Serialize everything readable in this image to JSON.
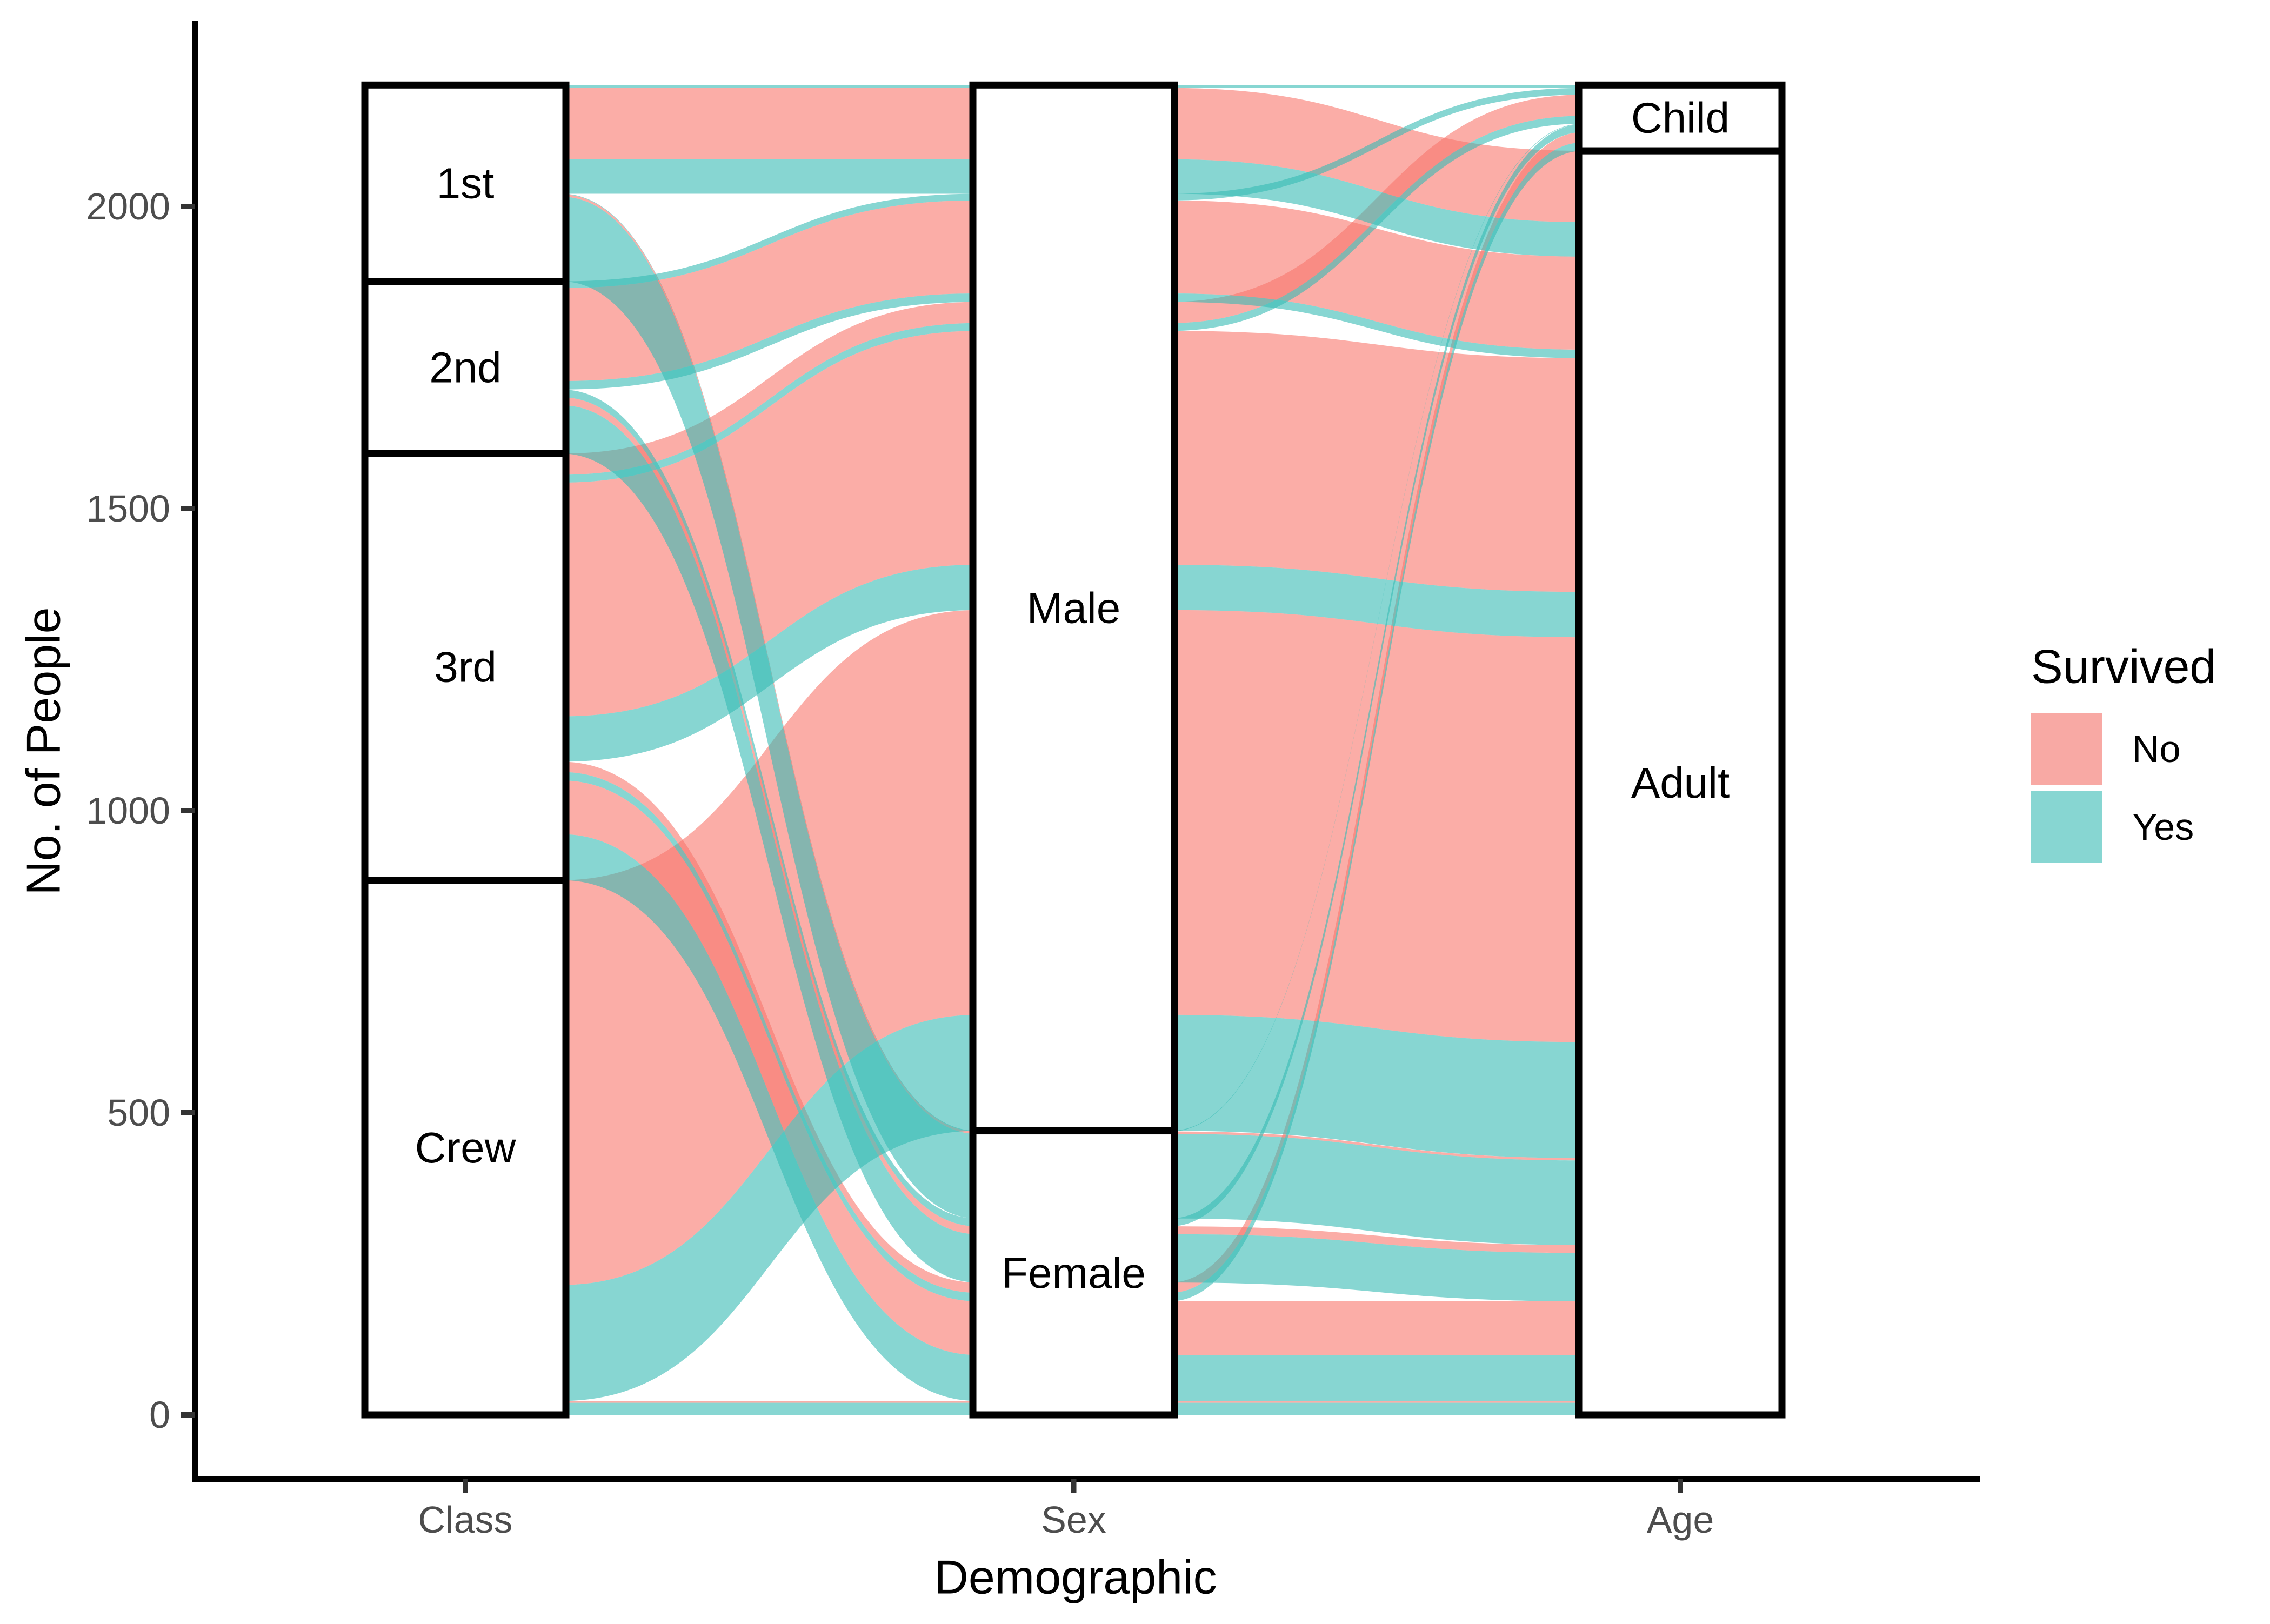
{
  "figure": {
    "background": "#FFFFFF",
    "y_axis": {
      "title": "No. of People",
      "tick_labels": [
        "0",
        "500",
        "1000",
        "1500",
        "2000"
      ],
      "tick_color": "#4D4D4D",
      "line_color": "#000000"
    },
    "x_axis": {
      "title": "Demographic",
      "tick_labels": [
        "Class",
        "Sex",
        "Age"
      ],
      "tick_color": "#4D4D4D",
      "line_color": "#000000"
    },
    "legend": {
      "title": "Survived",
      "entries": [
        {
          "label": "No",
          "swatch_color": "#F8A9A4"
        },
        {
          "label": "Yes",
          "swatch_color": "#87D6D2"
        }
      ]
    },
    "strata_labels": {
      "Class": [
        "1st",
        "2nd",
        "3rd",
        "Crew"
      ],
      "Sex": [
        "Male",
        "Female"
      ],
      "Age": [
        "Child",
        "Adult"
      ]
    }
  },
  "chart_data": {
    "type": "alluvial",
    "title": "",
    "xlabel": "Demographic",
    "ylabel": "No. of People",
    "axes": [
      "Class",
      "Sex",
      "Age"
    ],
    "strata": {
      "Class": [
        "1st",
        "2nd",
        "3rd",
        "Crew"
      ],
      "Sex": [
        "Male",
        "Female"
      ],
      "Age": [
        "Child",
        "Adult"
      ]
    },
    "stratum_totals": {
      "Class": {
        "1st": 325,
        "2nd": 285,
        "3rd": 706,
        "Crew": 885
      },
      "Sex": {
        "Male": 1731,
        "Female": 470
      },
      "Age": {
        "Child": 109,
        "Adult": 2092
      }
    },
    "fill_variable": "Survived",
    "fill_levels": [
      "No",
      "Yes"
    ],
    "fill_base_colors": {
      "No": "#F8766D",
      "Yes": "#37BBB4"
    },
    "fill_display_colors": {
      "No": "#F8A9A4",
      "Yes": "#87D6D2"
    },
    "flow_opacity": 0.6,
    "yticks": [
      0,
      500,
      1000,
      1500,
      2000
    ],
    "ylim": [
      0,
      2201
    ],
    "grid": false,
    "legend_position": "right",
    "lode_order_keys": {
      "Class": [
        "Sex",
        "Age",
        "Survived"
      ],
      "Sex": [
        "Class",
        "Age",
        "Survived"
      ],
      "Age": [
        "Sex",
        "Class",
        "Survived"
      ]
    },
    "alluvia": [
      {
        "Class": "1st",
        "Sex": "Male",
        "Age": "Adult",
        "Survived": "No",
        "Freq": 118
      },
      {
        "Class": "2nd",
        "Sex": "Male",
        "Age": "Adult",
        "Survived": "No",
        "Freq": 154
      },
      {
        "Class": "3rd",
        "Sex": "Male",
        "Age": "Child",
        "Survived": "No",
        "Freq": 35
      },
      {
        "Class": "3rd",
        "Sex": "Male",
        "Age": "Adult",
        "Survived": "No",
        "Freq": 387
      },
      {
        "Class": "Crew",
        "Sex": "Male",
        "Age": "Adult",
        "Survived": "No",
        "Freq": 670
      },
      {
        "Class": "1st",
        "Sex": "Female",
        "Age": "Adult",
        "Survived": "No",
        "Freq": 4
      },
      {
        "Class": "2nd",
        "Sex": "Female",
        "Age": "Adult",
        "Survived": "No",
        "Freq": 13
      },
      {
        "Class": "3rd",
        "Sex": "Female",
        "Age": "Child",
        "Survived": "No",
        "Freq": 17
      },
      {
        "Class": "3rd",
        "Sex": "Female",
        "Age": "Adult",
        "Survived": "No",
        "Freq": 89
      },
      {
        "Class": "Crew",
        "Sex": "Female",
        "Age": "Adult",
        "Survived": "No",
        "Freq": 3
      },
      {
        "Class": "1st",
        "Sex": "Male",
        "Age": "Child",
        "Survived": "Yes",
        "Freq": 5
      },
      {
        "Class": "2nd",
        "Sex": "Male",
        "Age": "Child",
        "Survived": "Yes",
        "Freq": 11
      },
      {
        "Class": "3rd",
        "Sex": "Male",
        "Age": "Child",
        "Survived": "Yes",
        "Freq": 13
      },
      {
        "Class": "1st",
        "Sex": "Male",
        "Age": "Adult",
        "Survived": "Yes",
        "Freq": 57
      },
      {
        "Class": "2nd",
        "Sex": "Male",
        "Age": "Adult",
        "Survived": "Yes",
        "Freq": 14
      },
      {
        "Class": "3rd",
        "Sex": "Male",
        "Age": "Adult",
        "Survived": "Yes",
        "Freq": 75
      },
      {
        "Class": "Crew",
        "Sex": "Male",
        "Age": "Adult",
        "Survived": "Yes",
        "Freq": 192
      },
      {
        "Class": "1st",
        "Sex": "Female",
        "Age": "Child",
        "Survived": "Yes",
        "Freq": 1
      },
      {
        "Class": "2nd",
        "Sex": "Female",
        "Age": "Child",
        "Survived": "Yes",
        "Freq": 13
      },
      {
        "Class": "3rd",
        "Sex": "Female",
        "Age": "Child",
        "Survived": "Yes",
        "Freq": 14
      },
      {
        "Class": "1st",
        "Sex": "Female",
        "Age": "Adult",
        "Survived": "Yes",
        "Freq": 140
      },
      {
        "Class": "2nd",
        "Sex": "Female",
        "Age": "Adult",
        "Survived": "Yes",
        "Freq": 80
      },
      {
        "Class": "3rd",
        "Sex": "Female",
        "Age": "Adult",
        "Survived": "Yes",
        "Freq": 76
      },
      {
        "Class": "Crew",
        "Sex": "Female",
        "Age": "Adult",
        "Survived": "Yes",
        "Freq": 20
      }
    ]
  }
}
